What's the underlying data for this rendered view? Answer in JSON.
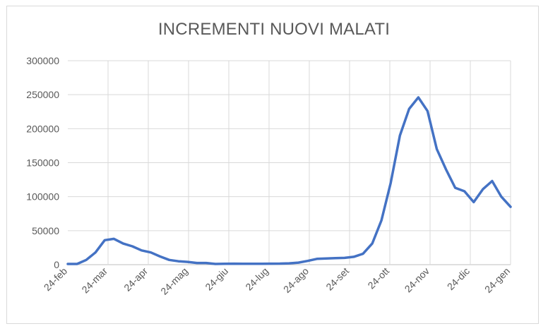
{
  "chart_data": {
    "type": "line",
    "title": "INCREMENTI NUOVI MALATI",
    "xlabel": "",
    "ylabel": "",
    "ylim": [
      0,
      300000
    ],
    "y_ticks": [
      "0",
      "50000",
      "100000",
      "150000",
      "200000",
      "250000",
      "300000"
    ],
    "x_tick_labels": [
      "24-feb",
      "24-mar",
      "24-apr",
      "24-mag",
      "24-giu",
      "24-lug",
      "24-ago",
      "24-set",
      "24-ott",
      "24-nov",
      "24-dic",
      "24-gen"
    ],
    "grid": true,
    "legend": "none",
    "line_color": "#4472C4",
    "series": [
      {
        "values": [
          1000,
          1000,
          7000,
          18000,
          36000,
          38000,
          31000,
          27000,
          21000,
          18000,
          12000,
          7000,
          5000,
          4000,
          2500,
          2500,
          1000,
          1200,
          1500,
          1300,
          1200,
          1300,
          1500,
          1600,
          2000,
          3000,
          5500,
          8500,
          9000,
          9500,
          10000,
          11500,
          16000,
          31000,
          65000,
          120000,
          190000,
          229000,
          246000,
          226000,
          170000,
          140000,
          113000,
          108000,
          92000,
          111000,
          123000,
          100000,
          85000
        ]
      }
    ]
  }
}
